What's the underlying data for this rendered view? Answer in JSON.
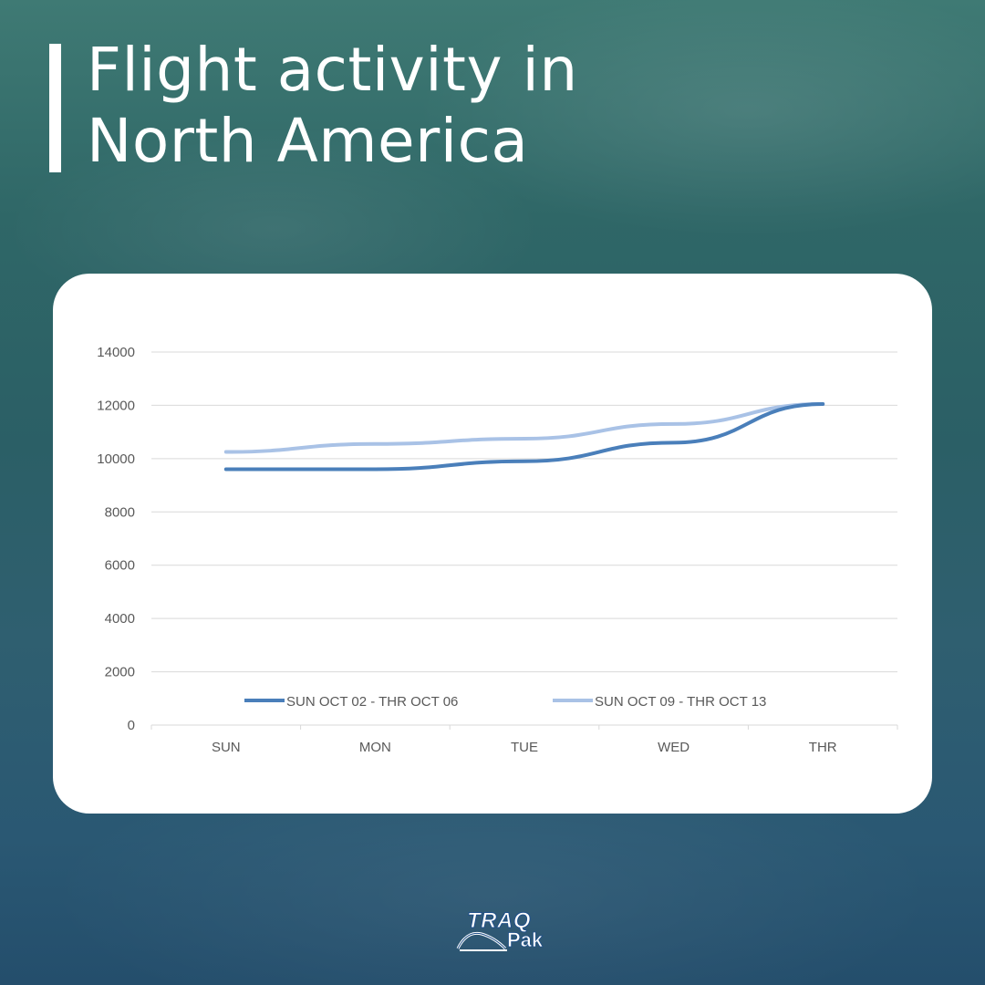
{
  "header": {
    "title_line1": "Flight activity in",
    "title_line2": "North America"
  },
  "logo": {
    "line1": "TRAQ",
    "line2": "Pak"
  },
  "colors": {
    "series1": "#4a7fba",
    "series2": "#a9c2e6",
    "grid": "#d9d9d9",
    "axis_text": "#595959"
  },
  "chart_data": {
    "type": "line",
    "categories": [
      "SUN",
      "MON",
      "TUE",
      "WED",
      "THR"
    ],
    "series": [
      {
        "name": "SUN OCT 02 - THR OCT 06",
        "values": [
          9600,
          9600,
          9900,
          10600,
          12050
        ]
      },
      {
        "name": "SUN OCT 09 - THR OCT 13",
        "values": [
          10250,
          10550,
          10750,
          11300,
          12050
        ]
      }
    ],
    "ylim": [
      0,
      14000
    ],
    "yticks": [
      0,
      2000,
      4000,
      6000,
      8000,
      10000,
      12000,
      14000
    ],
    "title": "",
    "xlabel": "",
    "ylabel": "",
    "grid": true,
    "legend_position": "bottom"
  }
}
